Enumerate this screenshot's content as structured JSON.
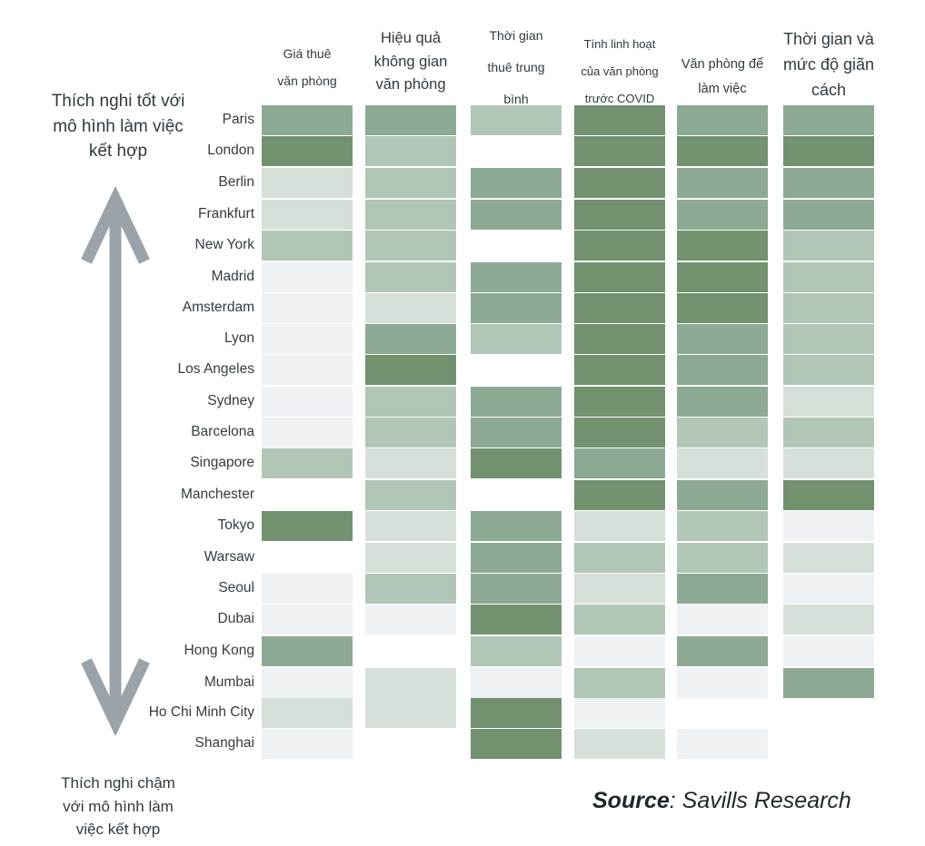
{
  "chart_data": {
    "type": "heatmap",
    "columns": [
      "Giá thuê\nvăn phòng",
      "Hiệu quả\nkhông gian\nvăn phòng",
      "Thời gian\nthuê trung\nbình",
      "Tính linh hoạt\ncủa văn phòng\ntrước COVID",
      "Văn phòng để\nlàm việc",
      "Thời gian và\nmức độ giãn\ncách"
    ],
    "rows": [
      "Paris",
      "London",
      "Berlin",
      "Frankfurt",
      "New York",
      "Madrid",
      "Amsterdam",
      "Lyon",
      "Los Angeles",
      "Sydney",
      "Barcelona",
      "Singapore",
      "Manchester",
      "Tokyo",
      "Warsaw",
      "Seoul",
      "Dubai",
      "Hong Kong",
      "Mumbai",
      "Ho Chi Minh City",
      "Shanghai"
    ],
    "levels": [
      [
        3,
        3,
        2,
        4,
        3,
        3
      ],
      [
        4,
        2,
        0,
        4,
        4,
        4
      ],
      [
        1,
        2,
        3,
        4,
        3,
        3
      ],
      [
        1,
        2,
        3,
        4,
        3,
        3
      ],
      [
        2,
        2,
        0,
        4,
        4,
        2
      ],
      [
        0.5,
        2,
        3,
        4,
        4,
        2
      ],
      [
        0.5,
        1,
        3,
        4,
        4,
        2
      ],
      [
        0.5,
        3,
        2,
        4,
        3,
        2
      ],
      [
        0.5,
        4,
        0,
        4,
        3,
        2
      ],
      [
        0.5,
        2,
        3,
        4,
        3,
        1
      ],
      [
        0.5,
        2,
        3,
        4,
        2,
        2
      ],
      [
        2,
        1,
        4,
        3,
        1,
        1
      ],
      [
        0,
        2,
        0,
        4,
        3,
        4
      ],
      [
        4,
        1,
        3,
        1,
        2,
        0.5
      ],
      [
        0,
        1,
        3,
        2,
        2,
        1
      ],
      [
        0.5,
        2,
        3,
        1,
        3,
        0.5
      ],
      [
        0.5,
        0.5,
        4,
        2,
        0.5,
        1
      ],
      [
        3,
        0,
        2,
        0.5,
        3,
        0.5
      ],
      [
        0.5,
        1,
        0.5,
        2,
        0.5,
        3
      ],
      [
        1,
        1,
        4,
        0.5,
        0,
        0
      ],
      [
        0.5,
        0,
        4,
        1,
        0.5,
        0
      ]
    ],
    "level_colors": {
      "0.5": "#eef2f5",
      "1": "#d7e0d8",
      "2": "#b2c6b7",
      "3": "#8ca994",
      "4": "#71916f"
    },
    "y_axis_top_label": "Thích nghi tốt với\nmô hình làm việc\nkết hợp",
    "y_axis_bottom_label": "Thích nghi chậm\nvới mô hình làm\nviệc kết hợp",
    "arrow_color": "#9aa3a9"
  },
  "source_label": "Source",
  "source_text": ": Savills Research"
}
